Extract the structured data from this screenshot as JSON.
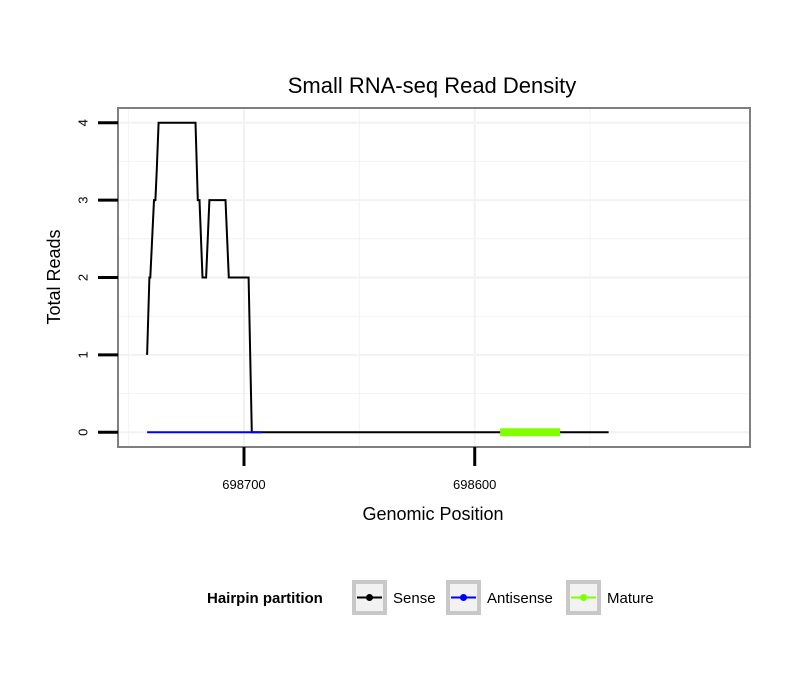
{
  "chart_data": {
    "type": "line",
    "title": "Small RNA-seq Read Density",
    "xlabel": "Genomic Position",
    "ylabel": "Total Reads",
    "x_reversed": true,
    "xlim": [
      698754.6,
      698480.7
    ],
    "ylim": [
      -0.19,
      4.19
    ],
    "x_ticks": [
      698700,
      698600
    ],
    "x_tick_labels": [
      "698700",
      "698600"
    ],
    "y_ticks": [
      0,
      1,
      2,
      3,
      4
    ],
    "y_tick_labels": [
      "0",
      "1",
      "2",
      "3",
      "4"
    ],
    "grid": true,
    "legend_position": "bottom",
    "legend_title": "Hairpin partition",
    "series": [
      {
        "name": "Sense",
        "color": "#000000",
        "x": [
          698742,
          698741,
          698740.6,
          698739,
          698738.4,
          698737.8,
          698737,
          698721,
          698720,
          698719.3,
          698718,
          698716.4,
          698715,
          698714.4,
          698708,
          698706.6,
          698705,
          698704.2,
          698698,
          698696.6,
          698692,
          698690,
          698589,
          698563,
          698542
        ],
        "y": [
          1,
          2,
          2,
          3,
          3,
          3.4,
          4,
          4,
          3,
          3,
          2,
          2,
          3,
          3,
          3,
          2,
          2,
          2,
          2,
          0,
          0,
          0,
          0,
          0,
          0
        ]
      },
      {
        "name": "Antisense",
        "color": "#0000ff",
        "x": [
          698742,
          698692
        ],
        "y": [
          0,
          0
        ]
      },
      {
        "name": "Mature",
        "color": "#80ff00",
        "x": [
          698589,
          698563
        ],
        "y": [
          0,
          0
        ]
      }
    ]
  }
}
